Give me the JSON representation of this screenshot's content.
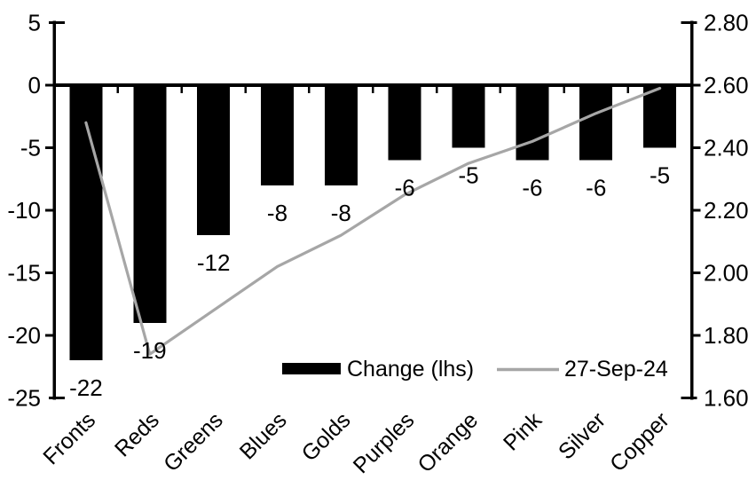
{
  "chart_data": {
    "type": "combo",
    "categories": [
      "Fronts",
      "Reds",
      "Greens",
      "Blues",
      "Golds",
      "Purples",
      "Orange",
      "Pink",
      "Silver",
      "Copper"
    ],
    "series": [
      {
        "name": "Change (lhs)",
        "type": "bar",
        "axis": "left",
        "color": "#000000",
        "values": [
          -22,
          -19,
          -12,
          -8,
          -8,
          -6,
          -5,
          -6,
          -6,
          -5
        ],
        "data_labels": [
          "-22",
          "-19",
          "-12",
          "-8",
          "-8",
          "-6",
          "-5",
          "-6",
          "-6",
          "-5"
        ]
      },
      {
        "name": "27-Sep-24",
        "type": "line",
        "axis": "right",
        "color": "#a6a6a6",
        "values": [
          2.48,
          1.74,
          1.88,
          2.02,
          2.12,
          2.25,
          2.35,
          2.42,
          2.51,
          2.59
        ]
      }
    ],
    "left_axis": {
      "max": 5,
      "min": -25,
      "tick_labels": [
        "5",
        "0",
        "-5",
        "-10",
        "-15",
        "-20",
        "-25"
      ]
    },
    "right_axis": {
      "max": 2.8,
      "min": 1.6,
      "tick_labels": [
        "2.80",
        "2.60",
        "2.40",
        "2.20",
        "2.00",
        "1.80",
        "1.60"
      ]
    },
    "legend": {
      "position": "bottom-inside",
      "entries": [
        {
          "label": "Change (lhs)",
          "swatch": "bar",
          "color": "#000000"
        },
        {
          "label": "27-Sep-24",
          "swatch": "line",
          "color": "#a6a6a6"
        }
      ]
    },
    "grid": false,
    "title": "",
    "xlabel": "",
    "ylabel": "",
    "axis_color": "#000000",
    "background": "#ffffff"
  }
}
